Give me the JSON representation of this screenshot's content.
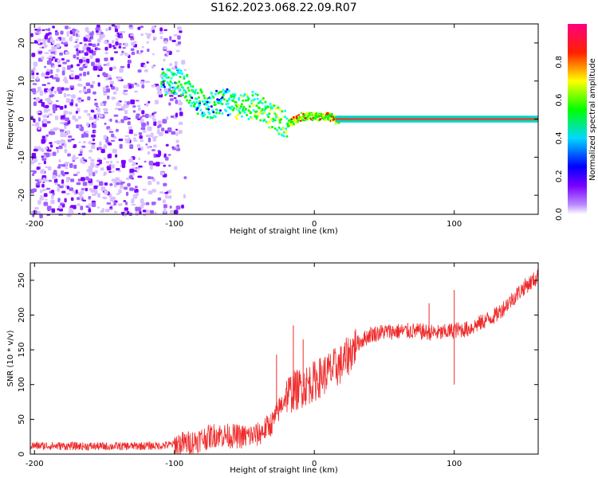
{
  "title": "S162.2023.068.22.09.R07",
  "chart_data": [
    {
      "type": "heatmap",
      "xlabel": "Height of straight line (km)",
      "ylabel": "Frequency (Hz)",
      "xlim": [
        -203,
        160
      ],
      "ylim": [
        -25,
        25
      ],
      "xticks": [
        -200,
        -100,
        0,
        100
      ],
      "yticks": [
        -20,
        -10,
        0,
        10,
        20
      ],
      "colorbar": {
        "label": "Normalized spectral amplitude",
        "range": [
          0,
          1
        ],
        "ticks": [
          "0.0",
          "0.2",
          "0.4",
          "0.6",
          "0.8"
        ],
        "colormap": [
          "#ffffff",
          "#7a00ff",
          "#0000ff",
          "#00ffff",
          "#00ff00",
          "#ffff00",
          "#ff0000",
          "#ff0080"
        ]
      },
      "ridge": [
        {
          "x": -95,
          "y": 10
        },
        {
          "x": -85,
          "y": 5
        },
        {
          "x": -75,
          "y": 4
        },
        {
          "x": -65,
          "y": 5
        },
        {
          "x": -55,
          "y": 3
        },
        {
          "x": -45,
          "y": 4
        },
        {
          "x": -35,
          "y": 2
        },
        {
          "x": -28,
          "y": 0
        },
        {
          "x": -20,
          "y": -1
        },
        {
          "x": -10,
          "y": 1
        },
        {
          "x": 0,
          "y": 1
        },
        {
          "x": 10,
          "y": 1
        },
        {
          "x": 15,
          "y": 0
        },
        {
          "x": 160,
          "y": 0
        }
      ],
      "grid": false
    },
    {
      "type": "line",
      "xlabel": "Height of straight line (km)",
      "ylabel": "SNR (10 * v/v)",
      "xlim": [
        -203,
        160
      ],
      "ylim": [
        0,
        275
      ],
      "xticks": [
        -200,
        -100,
        0,
        100
      ],
      "yticks": [
        0,
        50,
        100,
        150,
        200,
        250
      ],
      "color": "#ef2a2a",
      "trend": {
        "x": [
          -200,
          -150,
          -110,
          -90,
          -70,
          -60,
          -50,
          -40,
          -30,
          -20,
          -10,
          0,
          10,
          20,
          30,
          40,
          50,
          70,
          90,
          100,
          110,
          130,
          150,
          160
        ],
        "y": [
          12,
          11,
          12,
          16,
          28,
          26,
          25,
          28,
          45,
          85,
          95,
          105,
          118,
          130,
          158,
          172,
          176,
          177,
          174,
          178,
          180,
          200,
          240,
          255
        ]
      },
      "spikes": [
        {
          "x": -27,
          "y": 143
        },
        {
          "x": -15,
          "y": 185
        },
        {
          "x": -8,
          "y": 165
        },
        {
          "x": 82,
          "y": 217
        },
        {
          "x": 100,
          "y": 236
        },
        {
          "x": 100,
          "y": 100
        }
      ],
      "grid": false
    }
  ]
}
